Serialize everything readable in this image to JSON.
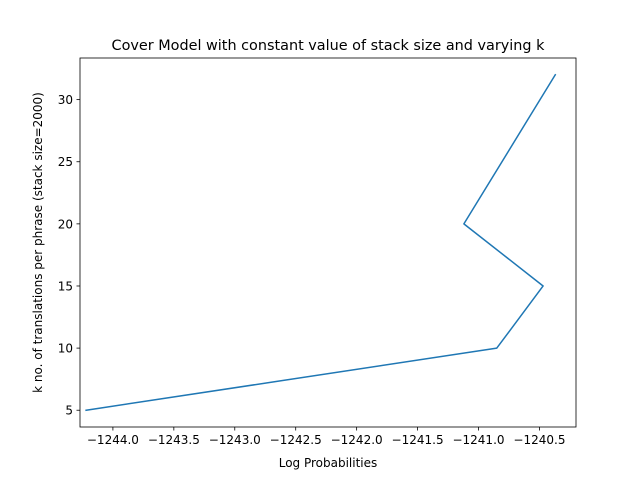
{
  "chart_data": {
    "type": "line",
    "title": "Cover Model with constant value of stack size and varying k",
    "xlabel": "Log Probabilities",
    "ylabel": "k no. of translations per phrase (stack size=2000)",
    "xlim": [
      -1244.27,
      -1240.2
    ],
    "ylim": [
      3.65,
      33.35
    ],
    "xticks": [
      -1244.0,
      -1243.5,
      -1243.0,
      -1242.5,
      -1242.0,
      -1241.5,
      -1241.0,
      -1240.5
    ],
    "xtick_labels": [
      "−1244.0",
      "−1243.5",
      "−1243.0",
      "−1242.5",
      "−1242.0",
      "−1241.5",
      "−1241.0",
      "−1240.5"
    ],
    "yticks": [
      5,
      10,
      15,
      20,
      25,
      30
    ],
    "ytick_labels": [
      "5",
      "10",
      "15",
      "20",
      "25",
      "30"
    ],
    "grid": false,
    "series": [
      {
        "color": "#1f77b4",
        "x": [
          -1244.22,
          -1240.85,
          -1240.47,
          -1241.12,
          -1240.37
        ],
        "y": [
          5,
          10,
          15,
          20,
          32
        ]
      }
    ]
  }
}
